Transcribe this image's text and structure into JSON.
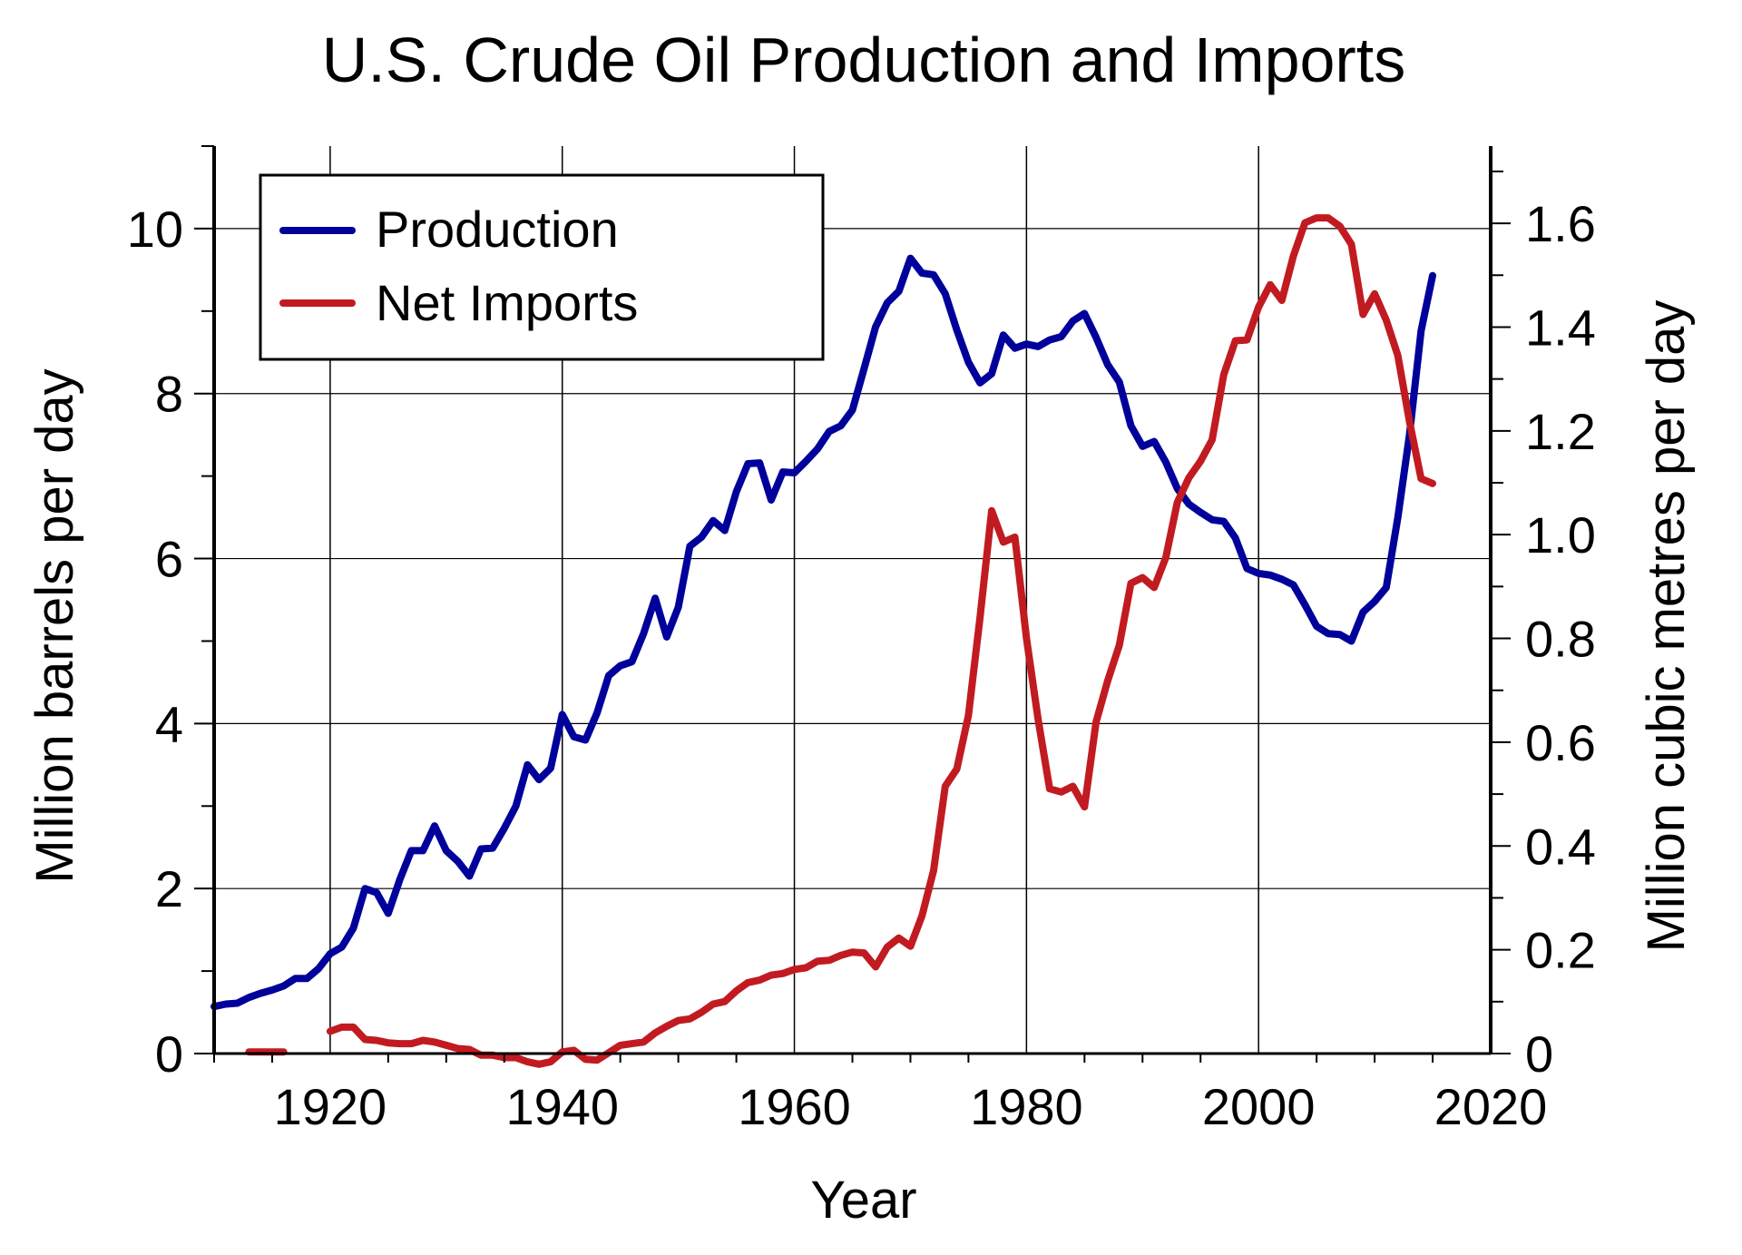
{
  "chart_data": {
    "type": "line",
    "title": "U.S. Crude Oil Production and Imports",
    "xlabel": "Year",
    "ylabel": "Million barrels per day",
    "y2label": "Million cubic metres per day",
    "xlim": [
      1910,
      2020
    ],
    "ylim": [
      0,
      11
    ],
    "y2lim": [
      0,
      1.7488
    ],
    "x_ticks": [
      "1920",
      "1940",
      "1960",
      "1980",
      "2000",
      "2020"
    ],
    "y_ticks": [
      "0",
      "2",
      "4",
      "6",
      "8",
      "10"
    ],
    "y2_ticks": [
      "0",
      "0.2",
      "0.4",
      "0.6",
      "0.8",
      "1.0",
      "1.2",
      "1.4",
      "1.6"
    ],
    "grid": true,
    "legend_position": "top-left",
    "series": [
      {
        "name": "Production",
        "color": "#00009b",
        "x": [
          1910,
          1911,
          1912,
          1913,
          1914,
          1915,
          1916,
          1917,
          1918,
          1919,
          1920,
          1921,
          1922,
          1923,
          1924,
          1925,
          1926,
          1927,
          1928,
          1929,
          1930,
          1931,
          1932,
          1933,
          1934,
          1935,
          1936,
          1937,
          1938,
          1939,
          1940,
          1941,
          1942,
          1943,
          1944,
          1945,
          1946,
          1947,
          1948,
          1949,
          1950,
          1951,
          1952,
          1953,
          1954,
          1955,
          1956,
          1957,
          1958,
          1959,
          1960,
          1961,
          1962,
          1963,
          1964,
          1965,
          1966,
          1967,
          1968,
          1969,
          1970,
          1971,
          1972,
          1973,
          1974,
          1975,
          1976,
          1977,
          1978,
          1979,
          1980,
          1981,
          1982,
          1983,
          1984,
          1985,
          1986,
          1987,
          1988,
          1989,
          1990,
          1991,
          1992,
          1993,
          1994,
          1995,
          1996,
          1997,
          1998,
          1999,
          2000,
          2001,
          2002,
          2003,
          2004,
          2005,
          2006,
          2007,
          2008,
          2009,
          2010,
          2011,
          2012,
          2013,
          2014,
          2015
        ],
        "values": [
          0.57,
          0.6,
          0.61,
          0.68,
          0.73,
          0.77,
          0.82,
          0.91,
          0.91,
          1.03,
          1.21,
          1.29,
          1.52,
          2.0,
          1.95,
          1.7,
          2.11,
          2.46,
          2.46,
          2.76,
          2.46,
          2.33,
          2.15,
          2.48,
          2.49,
          2.73,
          3.0,
          3.5,
          3.32,
          3.46,
          4.11,
          3.84,
          3.8,
          4.13,
          4.58,
          4.7,
          4.75,
          5.09,
          5.52,
          5.05,
          5.41,
          6.15,
          6.26,
          6.46,
          6.34,
          6.81,
          7.15,
          7.16,
          6.71,
          7.05,
          7.04,
          7.18,
          7.33,
          7.54,
          7.61,
          7.8,
          8.3,
          8.81,
          9.1,
          9.24,
          9.64,
          9.46,
          9.44,
          9.21,
          8.77,
          8.38,
          8.13,
          8.24,
          8.71,
          8.55,
          8.6,
          8.57,
          8.65,
          8.69,
          8.88,
          8.97,
          8.68,
          8.35,
          8.14,
          7.61,
          7.36,
          7.42,
          7.17,
          6.85,
          6.66,
          6.56,
          6.47,
          6.45,
          6.25,
          5.88,
          5.82,
          5.8,
          5.75,
          5.68,
          5.44,
          5.18,
          5.09,
          5.08,
          5.0,
          5.35,
          5.48,
          5.65,
          6.5,
          7.5,
          8.76,
          9.43
        ]
      },
      {
        "name": "Net Imports",
        "color": "#c11b21",
        "segments": [
          {
            "x": [
              1913,
              1914,
              1915,
              1916
            ],
            "values": [
              0.02,
              0.02,
              0.02,
              0.02
            ]
          },
          {
            "x": [
              1920,
              1921,
              1922,
              1923,
              1924,
              1925,
              1926,
              1927,
              1928,
              1929,
              1930,
              1931,
              1932,
              1933,
              1934,
              1935,
              1936,
              1937,
              1938,
              1939,
              1940,
              1941,
              1942,
              1943,
              1944,
              1945,
              1946,
              1947,
              1948,
              1949,
              1950,
              1951,
              1952,
              1953,
              1954,
              1955,
              1956,
              1957,
              1958,
              1959,
              1960,
              1961,
              1962,
              1963,
              1964,
              1965,
              1966,
              1967,
              1968,
              1969,
              1970,
              1971,
              1972,
              1973,
              1974,
              1975,
              1976,
              1977,
              1978,
              1979,
              1980,
              1981,
              1982,
              1983,
              1984,
              1985,
              1986,
              1987,
              1988,
              1989,
              1990,
              1991,
              1992,
              1993,
              1994,
              1995,
              1996,
              1997,
              1998,
              1999,
              2000,
              2001,
              2002,
              2003,
              2004,
              2005,
              2006,
              2007,
              2008,
              2009,
              2010,
              2011,
              2012,
              2013,
              2014,
              2015
            ],
            "values": [
              0.27,
              0.32,
              0.32,
              0.17,
              0.16,
              0.13,
              0.12,
              0.12,
              0.16,
              0.14,
              0.1,
              0.06,
              0.05,
              -0.02,
              -0.02,
              -0.05,
              -0.05,
              -0.1,
              -0.13,
              -0.1,
              0.02,
              0.04,
              -0.07,
              -0.08,
              0.01,
              0.1,
              0.12,
              0.14,
              0.25,
              0.33,
              0.4,
              0.42,
              0.5,
              0.6,
              0.63,
              0.76,
              0.86,
              0.89,
              0.95,
              0.97,
              1.02,
              1.04,
              1.12,
              1.13,
              1.19,
              1.23,
              1.22,
              1.05,
              1.29,
              1.4,
              1.3,
              1.67,
              2.22,
              3.24,
              3.45,
              4.1,
              5.29,
              6.58,
              6.2,
              6.26,
              5.03,
              4.05,
              3.21,
              3.17,
              3.24,
              2.99,
              4.02,
              4.52,
              4.95,
              5.7,
              5.77,
              5.65,
              6.01,
              6.68,
              6.98,
              7.18,
              7.44,
              8.23,
              8.64,
              8.65,
              9.05,
              9.32,
              9.13,
              9.67,
              10.07,
              10.13,
              10.13,
              10.03,
              9.81,
              8.96,
              9.21,
              8.89,
              8.46,
              7.66,
              6.97,
              6.91
            ]
          }
        ]
      }
    ]
  }
}
